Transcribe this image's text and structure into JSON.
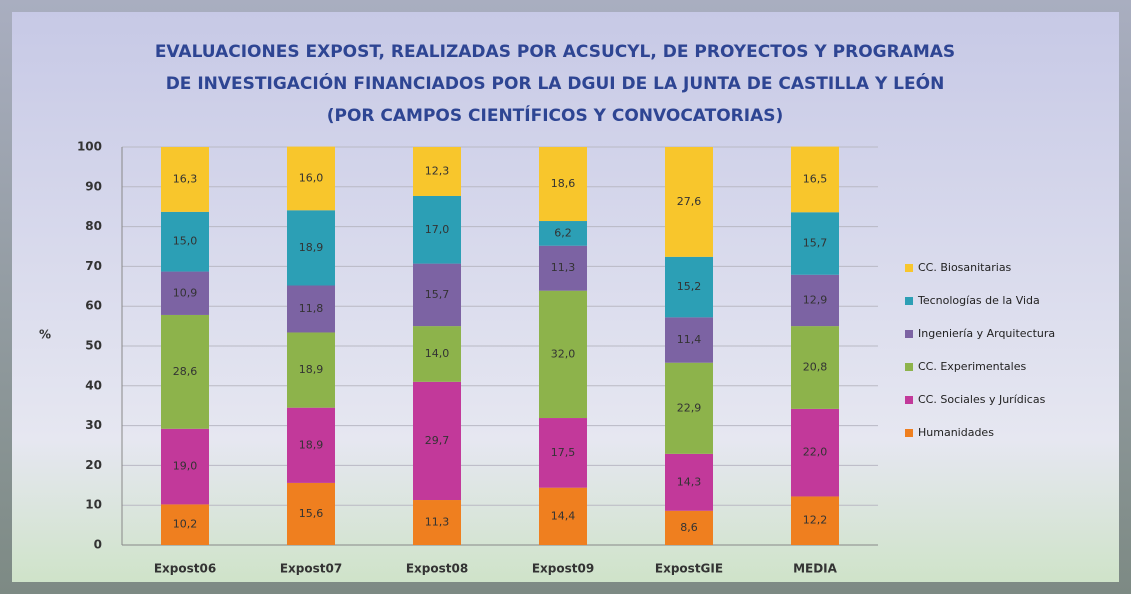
{
  "chart_data": {
    "type": "stacked_bar",
    "title": [
      "EVALUACIONES EXPOST, REALIZADAS POR ACSUCYL, DE PROYECTOS Y PROGRAMAS",
      "DE INVESTIGACIÓN FINANCIADOS POR LA DGUI DE LA JUNTA DE CASTILLA Y LEÓN",
      "(POR CAMPOS CIENTÍFICOS Y CONVOCATORIAS)"
    ],
    "ylabel": "%",
    "categories": [
      "Expost06",
      "Expost07",
      "Expost08",
      "Expost09",
      "ExpostGIE",
      "MEDIA"
    ],
    "series": [
      {
        "name": "Humanidades",
        "color": "#ef7f1f",
        "values": [
          10.2,
          15.6,
          11.3,
          14.4,
          8.6,
          12.2
        ],
        "value_labels": [
          "10,2",
          "15,6",
          "11,3",
          "14,4",
          "8,6",
          "12,2"
        ]
      },
      {
        "name": "CC. Sociales y Jurídicas",
        "color": "#c2399a",
        "values": [
          19.0,
          18.9,
          29.7,
          17.5,
          14.3,
          22.0
        ],
        "value_labels": [
          "19,0",
          "18,9",
          "29,7",
          "17,5",
          "14,3",
          "22,0"
        ]
      },
      {
        "name": "CC. Experimentales",
        "color": "#8db34b",
        "values": [
          28.6,
          18.9,
          14.0,
          32.0,
          22.9,
          20.8
        ],
        "value_labels": [
          "28,6",
          "18,9",
          "14,0",
          "32,0",
          "22,9",
          "20,8"
        ]
      },
      {
        "name": "Ingeniería y Arquitectura",
        "color": "#7c63a3",
        "values": [
          10.9,
          11.8,
          15.7,
          11.3,
          11.4,
          12.9
        ],
        "value_labels": [
          "10,9",
          "11,8",
          "15,7",
          "11,3",
          "11,4",
          "12,9"
        ]
      },
      {
        "name": "Tecnologías de la Vida",
        "color": "#2c9fb5",
        "values": [
          15.0,
          18.9,
          17.0,
          6.2,
          15.2,
          15.7
        ],
        "value_labels": [
          "15,0",
          "18,9",
          "17,0",
          "6,2",
          "15,2",
          "15,7"
        ]
      },
      {
        "name": "CC. Biosanitarias",
        "color": "#f8c62c",
        "values": [
          16.3,
          16.0,
          12.3,
          18.6,
          27.6,
          16.5
        ],
        "value_labels": [
          "16,3",
          "16,0",
          "12,3",
          "18,6",
          "27,6",
          "16,5"
        ]
      }
    ],
    "ylim": [
      0,
      100
    ],
    "yticks": [
      0,
      10,
      20,
      30,
      40,
      50,
      60,
      70,
      80,
      90,
      100
    ],
    "grid": true,
    "legend": "right"
  }
}
